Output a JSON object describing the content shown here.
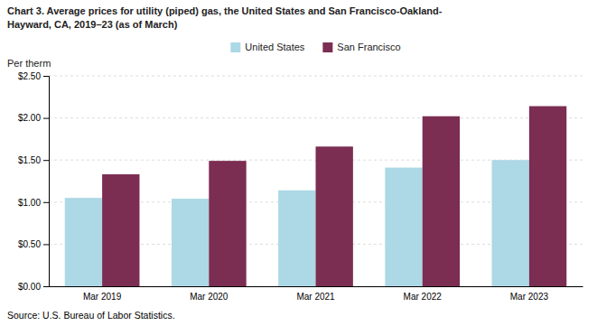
{
  "chart_data": {
    "type": "bar",
    "title": [
      "Chart 3. Average prices for utility (piped) gas, the United States and San Francisco-Oakland-",
      "Hayward, CA, 2019–23 (as of March)"
    ],
    "ylabel": "Per therm",
    "annotations": [
      "Source: U.S. Bureau of Labor Statistics."
    ],
    "categories": [
      "Mar 2019",
      "Mar 2020",
      "Mar 2021",
      "Mar 2022",
      "Mar 2023"
    ],
    "series": [
      {
        "name": "United States",
        "color": "#add8e6",
        "values": [
          1.05,
          1.04,
          1.14,
          1.41,
          1.5
        ]
      },
      {
        "name": "San Francisco",
        "color": "#7b2d52",
        "values": [
          1.33,
          1.49,
          1.66,
          2.02,
          2.14
        ]
      }
    ],
    "ylim": [
      0,
      2.5
    ],
    "yticks": [
      {
        "value": 0.0,
        "label": "$0.00"
      },
      {
        "value": 0.5,
        "label": "$0.50"
      },
      {
        "value": 1.0,
        "label": "$1.00"
      },
      {
        "value": 1.5,
        "label": "$1.50"
      },
      {
        "value": 2.0,
        "label": "$2.00"
      },
      {
        "value": 2.5,
        "label": "$2.50"
      }
    ],
    "grid": true,
    "legend": "top"
  }
}
